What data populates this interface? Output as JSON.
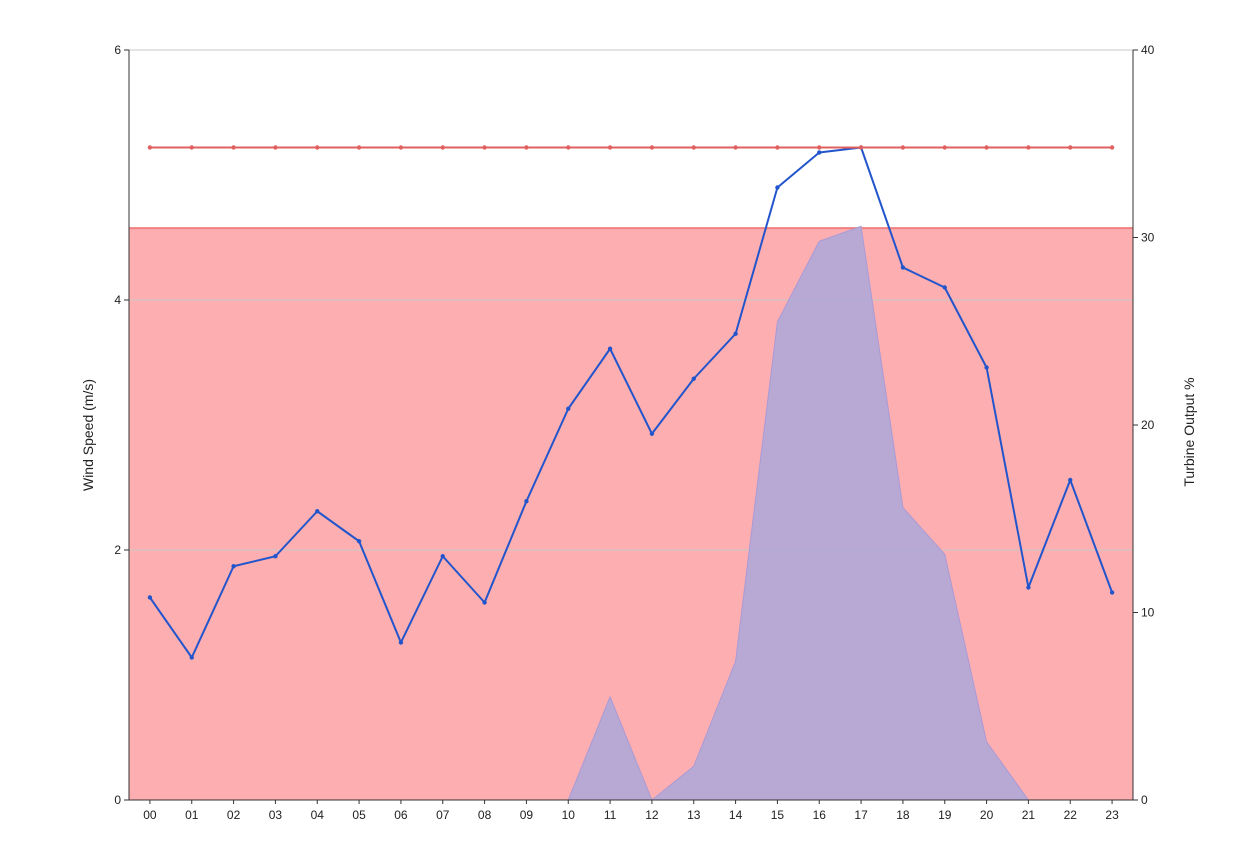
{
  "chart_data": {
    "type": "line",
    "categories": [
      "00",
      "01",
      "02",
      "03",
      "04",
      "05",
      "06",
      "07",
      "08",
      "09",
      "10",
      "11",
      "12",
      "13",
      "14",
      "15",
      "16",
      "17",
      "18",
      "19",
      "20",
      "21",
      "22",
      "23"
    ],
    "left_axis": {
      "label": "Wind Speed (m/s)",
      "range": [
        0,
        6
      ],
      "ticks": [
        0,
        2,
        4,
        6
      ]
    },
    "right_axis": {
      "label": "Turbine Output %",
      "range": [
        0,
        40
      ],
      "ticks": [
        0,
        10,
        20,
        30,
        40
      ]
    },
    "grid": true,
    "series": [
      {
        "type": "area",
        "axis": "right",
        "color": "#b0a8d8",
        "values": [
          0,
          0,
          0,
          0,
          0,
          0,
          0,
          0,
          0,
          0,
          0,
          5.5,
          0,
          1.8,
          7.4,
          25.5,
          29.8,
          30.6,
          15.6,
          13.1,
          3.1,
          0,
          0,
          0
        ]
      },
      {
        "type": "line",
        "axis": "left",
        "color": "#2255cc",
        "values": [
          1.62,
          1.14,
          1.87,
          1.95,
          2.31,
          2.07,
          1.26,
          1.95,
          1.58,
          2.39,
          3.13,
          3.61,
          2.93,
          3.37,
          3.73,
          4.9,
          5.18,
          5.22,
          4.26,
          4.1,
          3.46,
          1.7,
          2.56,
          1.66
        ]
      },
      {
        "type": "line",
        "axis": "left",
        "color": "#e06060",
        "values": [
          5.22,
          5.22,
          5.22,
          5.22,
          5.22,
          5.22,
          5.22,
          5.22,
          5.22,
          5.22,
          5.22,
          5.22,
          5.22,
          5.22,
          5.22,
          5.22,
          5.22,
          5.22,
          5.22,
          5.22,
          5.22,
          5.22,
          5.22,
          5.22
        ]
      }
    ],
    "band": {
      "axis": "right",
      "from": 0,
      "to": 30.5,
      "color": "#fdaeb0",
      "edge_color": "#f08080"
    }
  }
}
